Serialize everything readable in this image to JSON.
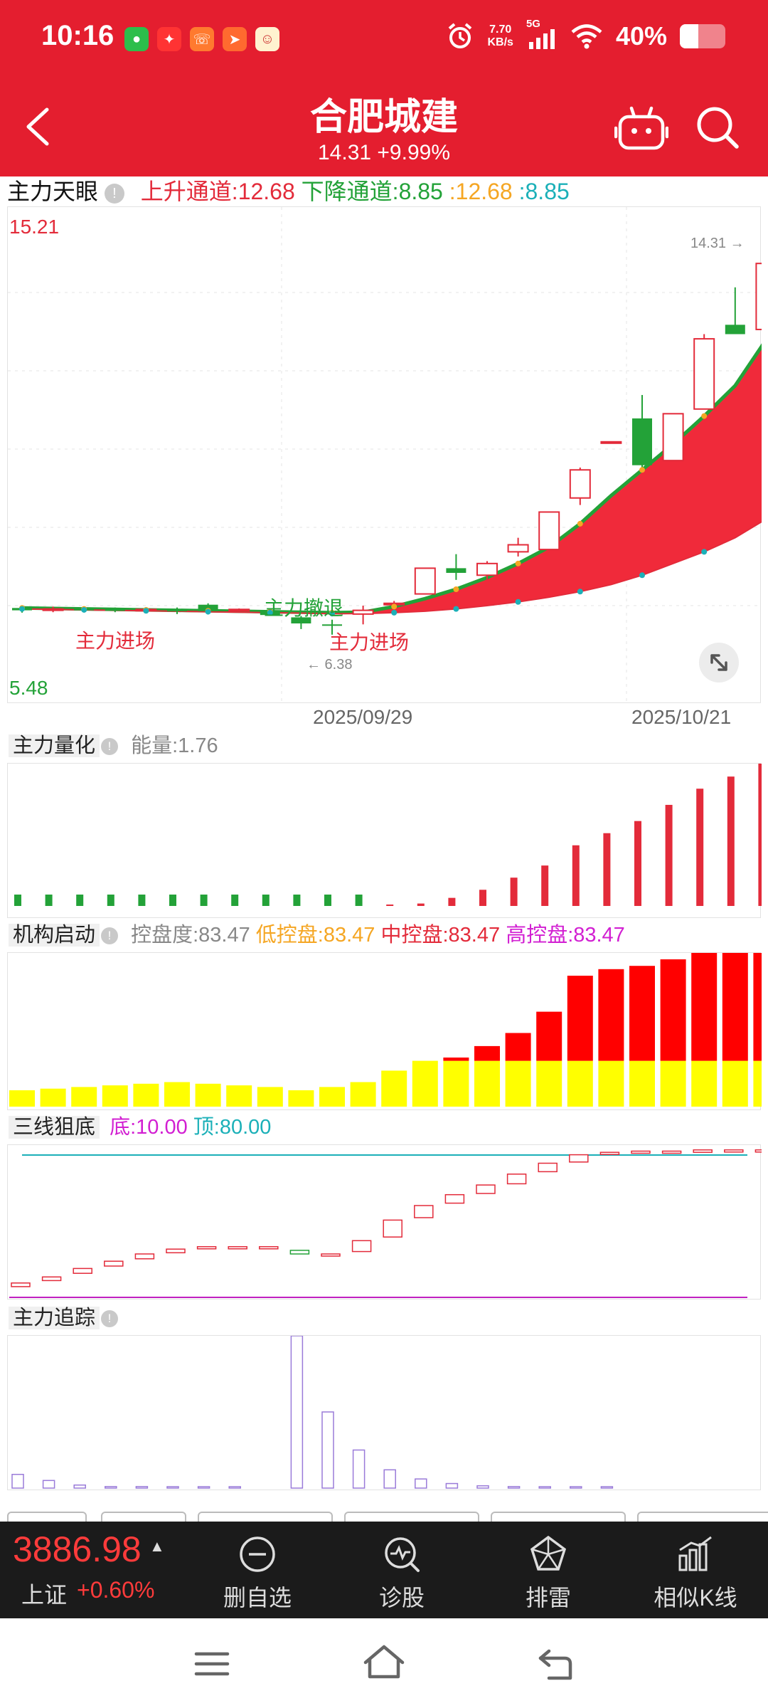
{
  "status_bar": {
    "time": "10:16",
    "net_speed_value": "7.70",
    "net_speed_unit": "KB/s",
    "network": "5G",
    "battery": "40%",
    "battery_level": 0.4,
    "app_icons": [
      "wechat-icon",
      "app-bird-icon",
      "phone-app-icon",
      "paper-plane-icon",
      "cartoon-app-icon"
    ]
  },
  "header": {
    "title": "合肥城建",
    "subtitle": "14.31 +9.99%"
  },
  "indicator_main": {
    "name": "主力天眼",
    "up_channel": "上升通道:12.68",
    "down_channel": "下降通道:8.85",
    "val_a": ":12.68",
    "val_b": ":8.85",
    "y_max": "15.21",
    "y_min": "5.48",
    "high_mark": "14.31 →",
    "low_mark": "← 6.38",
    "date_left": "2025/09/29",
    "date_right": "2025/10/21",
    "signal_in_1": "主力进场",
    "signal_out": "主力撤退",
    "signal_in_2": "主力进场"
  },
  "indicator_quant": {
    "name": "主力量化",
    "energy": "能量:1.76"
  },
  "indicator_inst": {
    "name": "机构启动",
    "control": "控盘度:83.47",
    "low": "低控盘:83.47",
    "mid": "中控盘:83.47",
    "high": "高控盘:83.47"
  },
  "indicator_three": {
    "name": "三线狙底",
    "bottom": "底:10.00",
    "top": "顶:80.00"
  },
  "indicator_track": {
    "name": "主力追踪"
  },
  "bottom_bar": {
    "index_value": "3886.98",
    "index_arrow": "▲",
    "index_name": "上证",
    "index_change": "+0.60%",
    "nav": [
      {
        "label": "删自选",
        "icon": "minus-circle-icon"
      },
      {
        "label": "诊股",
        "icon": "diagnose-icon"
      },
      {
        "label": "排雷",
        "icon": "mine-sweep-icon"
      },
      {
        "label": "相似K线",
        "icon": "similar-kline-icon"
      }
    ]
  },
  "colors": {
    "brand_red": "#e41e2f",
    "up": "#e32b3a",
    "down": "#23a238",
    "yellow": "#ffff00",
    "magenta": "#ff22ee",
    "teal": "#1bb0b8",
    "orange": "#f5a623"
  },
  "chart_data": [
    {
      "type": "candlestick",
      "title": "主力天眼",
      "ylim": [
        5.48,
        15.21
      ],
      "x_labels": [
        "2025/09/29",
        "2025/10/21"
      ],
      "candles": [
        {
          "o": 6.95,
          "h": 6.98,
          "l": 6.85,
          "c": 6.9
        },
        {
          "o": 6.92,
          "h": 6.98,
          "l": 6.86,
          "c": 6.93
        },
        {
          "o": 6.93,
          "h": 6.98,
          "l": 6.88,
          "c": 6.92
        },
        {
          "o": 6.92,
          "h": 6.96,
          "l": 6.86,
          "c": 6.9
        },
        {
          "o": 6.9,
          "h": 6.95,
          "l": 6.86,
          "c": 6.92
        },
        {
          "o": 6.92,
          "h": 6.96,
          "l": 6.82,
          "c": 6.88
        },
        {
          "o": 7.02,
          "h": 7.05,
          "l": 6.86,
          "c": 6.88
        },
        {
          "o": 6.92,
          "h": 6.94,
          "l": 6.9,
          "c": 6.92
        },
        {
          "o": 6.9,
          "h": 6.92,
          "l": 6.82,
          "c": 6.8
        },
        {
          "o": 6.75,
          "h": 6.78,
          "l": 6.5,
          "c": 6.62
        },
        {
          "o": 6.6,
          "h": 6.7,
          "l": 6.38,
          "c": 6.58
        },
        {
          "o": 6.82,
          "h": 7.0,
          "l": 6.6,
          "c": 6.9
        },
        {
          "o": 7.05,
          "h": 7.1,
          "l": 6.95,
          "c": 7.05
        },
        {
          "o": 7.25,
          "h": 7.8,
          "l": 7.25,
          "c": 7.8
        },
        {
          "o": 7.8,
          "h": 8.1,
          "l": 7.55,
          "c": 7.7
        },
        {
          "o": 7.65,
          "h": 7.95,
          "l": 7.55,
          "c": 7.9
        },
        {
          "o": 8.15,
          "h": 8.45,
          "l": 8.05,
          "c": 8.3
        },
        {
          "o": 8.2,
          "h": 9.0,
          "l": 8.2,
          "c": 9.0
        },
        {
          "o": 9.3,
          "h": 9.95,
          "l": 9.15,
          "c": 9.9
        },
        {
          "o": 10.5,
          "h": 10.5,
          "l": 10.5,
          "c": 10.5
        },
        {
          "o": 11.0,
          "h": 11.5,
          "l": 9.9,
          "c": 10.0
        },
        {
          "o": 10.1,
          "h": 11.1,
          "l": 10.1,
          "c": 11.1
        },
        {
          "o": 11.2,
          "h": 12.8,
          "l": 11.2,
          "c": 12.7
        },
        {
          "o": 13.0,
          "h": 13.8,
          "l": 12.8,
          "c": 12.8
        },
        {
          "o": 12.9,
          "h": 14.31,
          "l": 12.9,
          "c": 14.31
        }
      ],
      "upper_line": [
        6.95,
        6.94,
        6.93,
        6.92,
        6.91,
        6.9,
        6.89,
        6.88,
        6.87,
        6.86,
        6.85,
        6.86,
        6.98,
        7.15,
        7.35,
        7.6,
        7.9,
        8.25,
        8.75,
        9.35,
        9.9,
        10.45,
        11.05,
        11.7,
        12.68
      ],
      "lower_line": [
        6.93,
        6.92,
        6.91,
        6.9,
        6.89,
        6.88,
        6.87,
        6.86,
        6.85,
        6.84,
        6.83,
        6.83,
        6.85,
        6.88,
        6.93,
        7.0,
        7.08,
        7.18,
        7.3,
        7.45,
        7.65,
        7.9,
        8.15,
        8.45,
        8.85
      ]
    },
    {
      "type": "bar",
      "title": "主力量化",
      "values": [
        -0.1,
        -0.1,
        -0.1,
        -0.1,
        -0.1,
        -0.1,
        -0.1,
        -0.1,
        -0.1,
        -0.1,
        -0.1,
        -0.1,
        0.01,
        0.03,
        0.1,
        0.2,
        0.35,
        0.5,
        0.75,
        0.9,
        1.05,
        1.25,
        1.45,
        1.6,
        1.76
      ],
      "ylim": [
        -0.15,
        1.76
      ]
    },
    {
      "type": "bar",
      "title": "机构启动",
      "ylim": [
        0,
        100
      ],
      "series": [
        {
          "name": "低控盘",
          "values": [
            10,
            11,
            12,
            13,
            14,
            15,
            14,
            13,
            12,
            10,
            12,
            15,
            22,
            28,
            28,
            28,
            28,
            28,
            28,
            28,
            28,
            28,
            28,
            28,
            28
          ]
        },
        {
          "name": "中控盘",
          "values": [
            0,
            0,
            0,
            0,
            0,
            0,
            0,
            0,
            0,
            0,
            0,
            0,
            0,
            0,
            2,
            9,
            17,
            30,
            52,
            56,
            58,
            62,
            67,
            67,
            67
          ]
        },
        {
          "name": "高控盘",
          "values": [
            0,
            0,
            0,
            0,
            0,
            0,
            0,
            0,
            0,
            0,
            0,
            0,
            0,
            0,
            0,
            0,
            0,
            0,
            0,
            0,
            0,
            0,
            2,
            6,
            8
          ]
        }
      ]
    },
    {
      "type": "candlestick",
      "title": "三线狙底",
      "ylim": [
        0,
        100
      ],
      "levels": {
        "底": 10.0,
        "顶": 80.0
      },
      "boxes": [
        {
          "o": 3,
          "c": 6
        },
        {
          "o": 8,
          "c": 11
        },
        {
          "o": 14,
          "c": 18
        },
        {
          "o": 20,
          "c": 24
        },
        {
          "o": 26,
          "c": 30
        },
        {
          "o": 31,
          "c": 34
        },
        {
          "o": 35,
          "c": 36
        },
        {
          "o": 35,
          "c": 36
        },
        {
          "o": 35,
          "c": 36
        },
        {
          "o": 33,
          "c": 30
        },
        {
          "o": 29,
          "c": 30
        },
        {
          "o": 32,
          "c": 41
        },
        {
          "o": 44,
          "c": 58
        },
        {
          "o": 60,
          "c": 70
        },
        {
          "o": 72,
          "c": 79
        },
        {
          "o": 80,
          "c": 87
        },
        {
          "o": 88,
          "c": 96
        },
        {
          "o": 98,
          "c": 105
        },
        {
          "o": 106,
          "c": 112
        },
        {
          "o": 113,
          "c": 114
        },
        {
          "o": 114,
          "c": 115
        },
        {
          "o": 114,
          "c": 115
        },
        {
          "o": 114,
          "c": 116
        },
        {
          "o": 115,
          "c": 116
        },
        {
          "o": 115,
          "c": 116
        }
      ]
    },
    {
      "type": "bar",
      "title": "主力追踪",
      "ylim": [
        0,
        100
      ],
      "values": [
        9,
        5,
        2,
        1,
        1,
        0.5,
        0.5,
        0.5,
        0,
        100,
        50,
        25,
        12,
        6,
        3,
        1.5,
        1,
        0.5,
        0.3,
        0.2,
        0,
        0,
        0,
        0,
        0
      ]
    }
  ]
}
